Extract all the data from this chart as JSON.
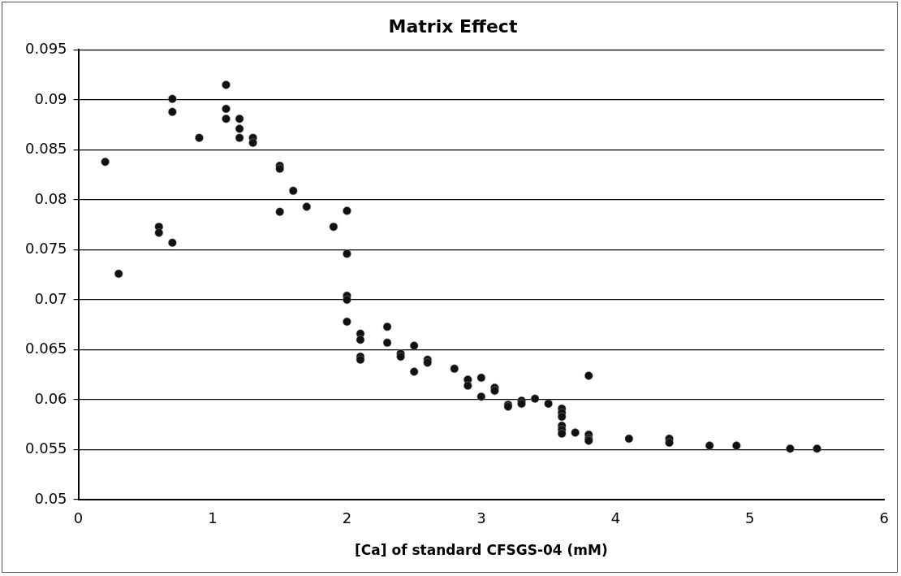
{
  "chart_data": {
    "type": "scatter",
    "title": "Matrix Effect",
    "xlabel": "[Ca] of standard CFSGS-04 (mM)",
    "x": [
      0.2,
      0.3,
      0.6,
      0.6,
      0.7,
      0.7,
      0.7,
      0.9,
      1.1,
      1.1,
      1.1,
      1.2,
      1.2,
      1.2,
      1.3,
      1.3,
      1.5,
      1.5,
      1.5,
      1.6,
      1.7,
      1.9,
      2.0,
      2.0,
      2.0,
      2.0,
      2.0,
      2.1,
      2.1,
      2.1,
      2.1,
      2.3,
      2.3,
      2.4,
      2.4,
      2.5,
      2.5,
      2.6,
      2.6,
      2.8,
      2.9,
      2.9,
      3.0,
      3.0,
      3.1,
      3.1,
      3.2,
      3.2,
      3.3,
      3.3,
      3.4,
      3.5,
      3.6,
      3.6,
      3.6,
      3.6,
      3.6,
      3.6,
      3.7,
      3.8,
      3.8,
      3.8,
      3.8,
      4.1,
      4.4,
      4.4,
      4.7,
      4.9,
      5.3,
      5.5
    ],
    "series": [
      {
        "color": "#111111",
        "values": [
          0.0838,
          0.0726,
          0.0773,
          0.0767,
          0.0901,
          0.0888,
          0.0757,
          0.0862,
          0.0915,
          0.0891,
          0.0881,
          0.0881,
          0.0871,
          0.0862,
          0.0862,
          0.0857,
          0.0834,
          0.0831,
          0.0788,
          0.0809,
          0.0793,
          0.0773,
          0.0789,
          0.0746,
          0.0704,
          0.07,
          0.0678,
          0.0666,
          0.066,
          0.0643,
          0.064,
          0.0673,
          0.0657,
          0.0646,
          0.0643,
          0.0654,
          0.0628,
          0.064,
          0.0637,
          0.0631,
          0.062,
          0.0614,
          0.0622,
          0.0603,
          0.0612,
          0.0609,
          0.0595,
          0.0593,
          0.0599,
          0.0596,
          0.0601,
          0.0596,
          0.0591,
          0.0587,
          0.0583,
          0.0574,
          0.057,
          0.0566,
          0.0567,
          0.0624,
          0.0565,
          0.0561,
          0.0559,
          0.0561,
          0.0561,
          0.0557,
          0.0554,
          0.0554,
          0.0551,
          0.0551
        ]
      }
    ],
    "xlim": [
      0,
      6
    ],
    "xticks": [
      0,
      1,
      2,
      3,
      4,
      5,
      6
    ],
    "ylim": [
      0.05,
      0.095
    ],
    "yticks": [
      {
        "value": 0.05,
        "label": "0.05"
      },
      {
        "value": 0.055,
        "label": "0.055"
      },
      {
        "value": 0.06,
        "label": "0.06"
      },
      {
        "value": 0.065,
        "label": "0.065"
      },
      {
        "value": 0.07,
        "label": "0.07"
      },
      {
        "value": 0.075,
        "label": "0.075"
      },
      {
        "value": 0.08,
        "label": "0.08"
      },
      {
        "value": 0.085,
        "label": "0.085"
      },
      {
        "value": 0.09,
        "label": "0.09"
      },
      {
        "value": 0.095,
        "label": "0.095"
      }
    ],
    "grid": "y",
    "marker": "circle",
    "legend": false
  }
}
